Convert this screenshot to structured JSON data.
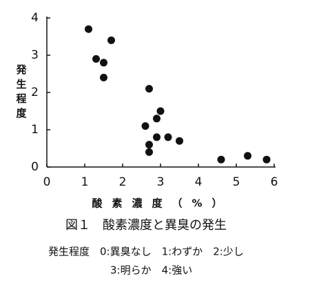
{
  "chart_data": {
    "type": "scatter",
    "title": "図１　酸素濃度と異臭の発生",
    "x_label": "酸素濃度（%）",
    "y_label": "発生程度",
    "x": [
      1.1,
      1.3,
      1.5,
      1.7,
      1.5,
      2.7,
      3.0,
      2.9,
      2.6,
      2.7,
      2.7,
      2.9,
      3.2,
      3.5,
      4.6,
      5.3,
      5.8
    ],
    "values": [
      3.7,
      2.9,
      2.8,
      3.4,
      2.4,
      2.1,
      1.5,
      1.3,
      1.1,
      0.6,
      0.4,
      0.8,
      0.8,
      0.7,
      0.2,
      0.3,
      0.2
    ],
    "color": "#111111",
    "xlim": [
      0,
      6
    ],
    "xticks": [
      0,
      1,
      2,
      3,
      4,
      5,
      6
    ],
    "ylim": [
      0,
      4
    ],
    "yticks": [
      0,
      1,
      2,
      3,
      4
    ],
    "notes": [
      "発生程度　0:異臭なし　1:わずか　2:少し",
      "3:明らか　4:強い"
    ]
  }
}
